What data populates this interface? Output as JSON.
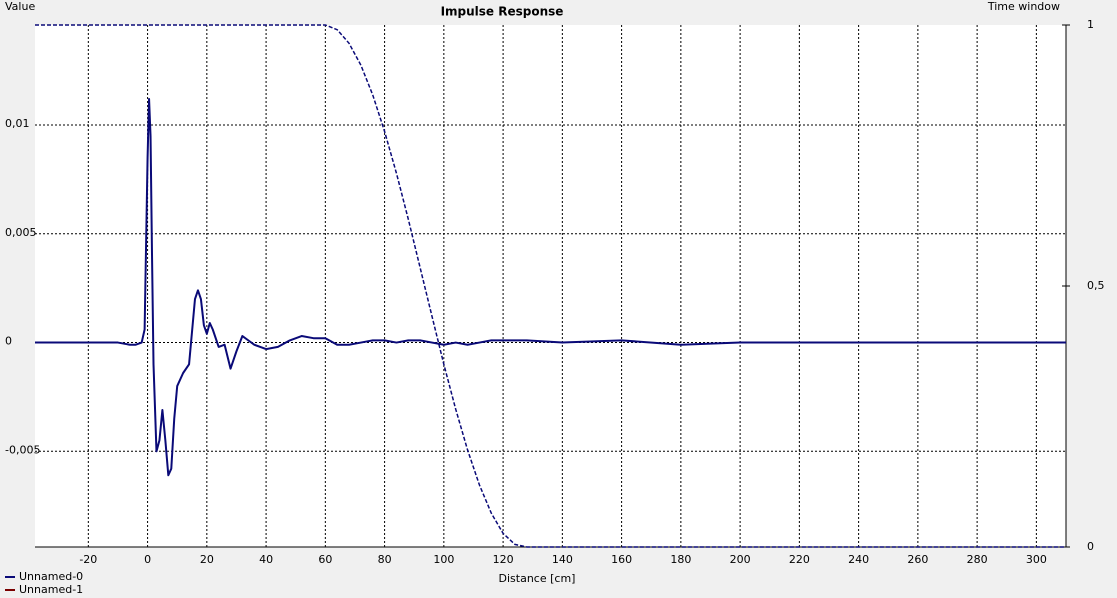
{
  "chart_data": {
    "type": "line",
    "title": "Impulse Response",
    "y_label": "Value",
    "y2_label": "Time window",
    "x_label": "Distance [cm]",
    "x": [
      -38,
      -10,
      -6,
      -4,
      -2,
      -1,
      0,
      0.5,
      1,
      1.5,
      2,
      3,
      4,
      5,
      6,
      7,
      8,
      9,
      10,
      12,
      14,
      16,
      17,
      18,
      19,
      20,
      21,
      22,
      24,
      26,
      28,
      30,
      32,
      34,
      36,
      40,
      44,
      48,
      52,
      56,
      60,
      64,
      68,
      72,
      76,
      80,
      84,
      88,
      92,
      96,
      100,
      104,
      108,
      112,
      116,
      120,
      124,
      128,
      140,
      160,
      180,
      200,
      240,
      280,
      310
    ],
    "series": [
      {
        "name": "Unnamed-0",
        "color": "#0a0a78",
        "values": [
          0,
          0,
          -0.0001,
          -0.0001,
          0,
          0.0006,
          0.0085,
          0.0112,
          0.0095,
          0.004,
          -0.001,
          -0.005,
          -0.0045,
          -0.0031,
          -0.0045,
          -0.0061,
          -0.0058,
          -0.0035,
          -0.002,
          -0.0014,
          -0.001,
          0.002,
          0.0024,
          0.002,
          0.0008,
          0.0004,
          0.0009,
          0.0006,
          -0.0002,
          -0.0001,
          -0.0012,
          -0.0004,
          0.0003,
          0.0001,
          -0.0001,
          -0.0003,
          -0.0002,
          0.0001,
          0.0003,
          0.0002,
          0.0002,
          -0.0001,
          -0.0001,
          0,
          0.0001,
          0.0001,
          0,
          0.0001,
          0.0001,
          0,
          -0.0001,
          0,
          -0.0001,
          0,
          0.0001,
          0.0001,
          0.0001,
          0.0001,
          0,
          0.0001,
          -0.0001,
          0,
          0,
          0,
          0
        ]
      },
      {
        "name": "Unnamed-1",
        "color": "#7a0000",
        "values": [
          null,
          null,
          null,
          null,
          null,
          null,
          null,
          null,
          null,
          null,
          null,
          null,
          null,
          null,
          null,
          null,
          null,
          null,
          null,
          null,
          null,
          null,
          null,
          null,
          null,
          null,
          null,
          null,
          null,
          null,
          null,
          null,
          null,
          null,
          null,
          null,
          null,
          null,
          null,
          null,
          null,
          null,
          null,
          null,
          null,
          null,
          null,
          null,
          null,
          null,
          null,
          null,
          null,
          null,
          null,
          null,
          null,
          null,
          null,
          null,
          null,
          null,
          null,
          null,
          null
        ]
      }
    ],
    "window": {
      "axis": "y2",
      "color": "#0a0a78",
      "dashed": true,
      "values": [
        1,
        1,
        1,
        1,
        1,
        1,
        1,
        1,
        1,
        1,
        1,
        1,
        1,
        1,
        1,
        1,
        1,
        1,
        1,
        1,
        1,
        1,
        1,
        1,
        1,
        1,
        1,
        1,
        1,
        1,
        1,
        1,
        1,
        1,
        1,
        1,
        1,
        1,
        1,
        1,
        1,
        0.991,
        0.965,
        0.923,
        0.866,
        0.796,
        0.716,
        0.628,
        0.535,
        0.442,
        0.35,
        0.264,
        0.186,
        0.119,
        0.065,
        0.026,
        0.005,
        0,
        0,
        0,
        0,
        0,
        0,
        0,
        0
      ]
    },
    "xlim": [
      -38,
      310
    ],
    "xticks": [
      -20,
      0,
      20,
      40,
      60,
      80,
      100,
      120,
      140,
      160,
      180,
      200,
      220,
      240,
      260,
      280,
      300
    ],
    "ylim": [
      -0.0094,
      0.0146
    ],
    "yticks": [
      {
        "value": 0.01,
        "label": "0,01"
      },
      {
        "value": 0.005,
        "label": "0,005"
      },
      0,
      {
        "value": -0.005,
        "label": "-0,005"
      }
    ],
    "y2lim": [
      0,
      1
    ],
    "y2ticks": [
      1,
      {
        "value": 0.5,
        "label": "0,5"
      },
      0
    ],
    "grid": true
  }
}
